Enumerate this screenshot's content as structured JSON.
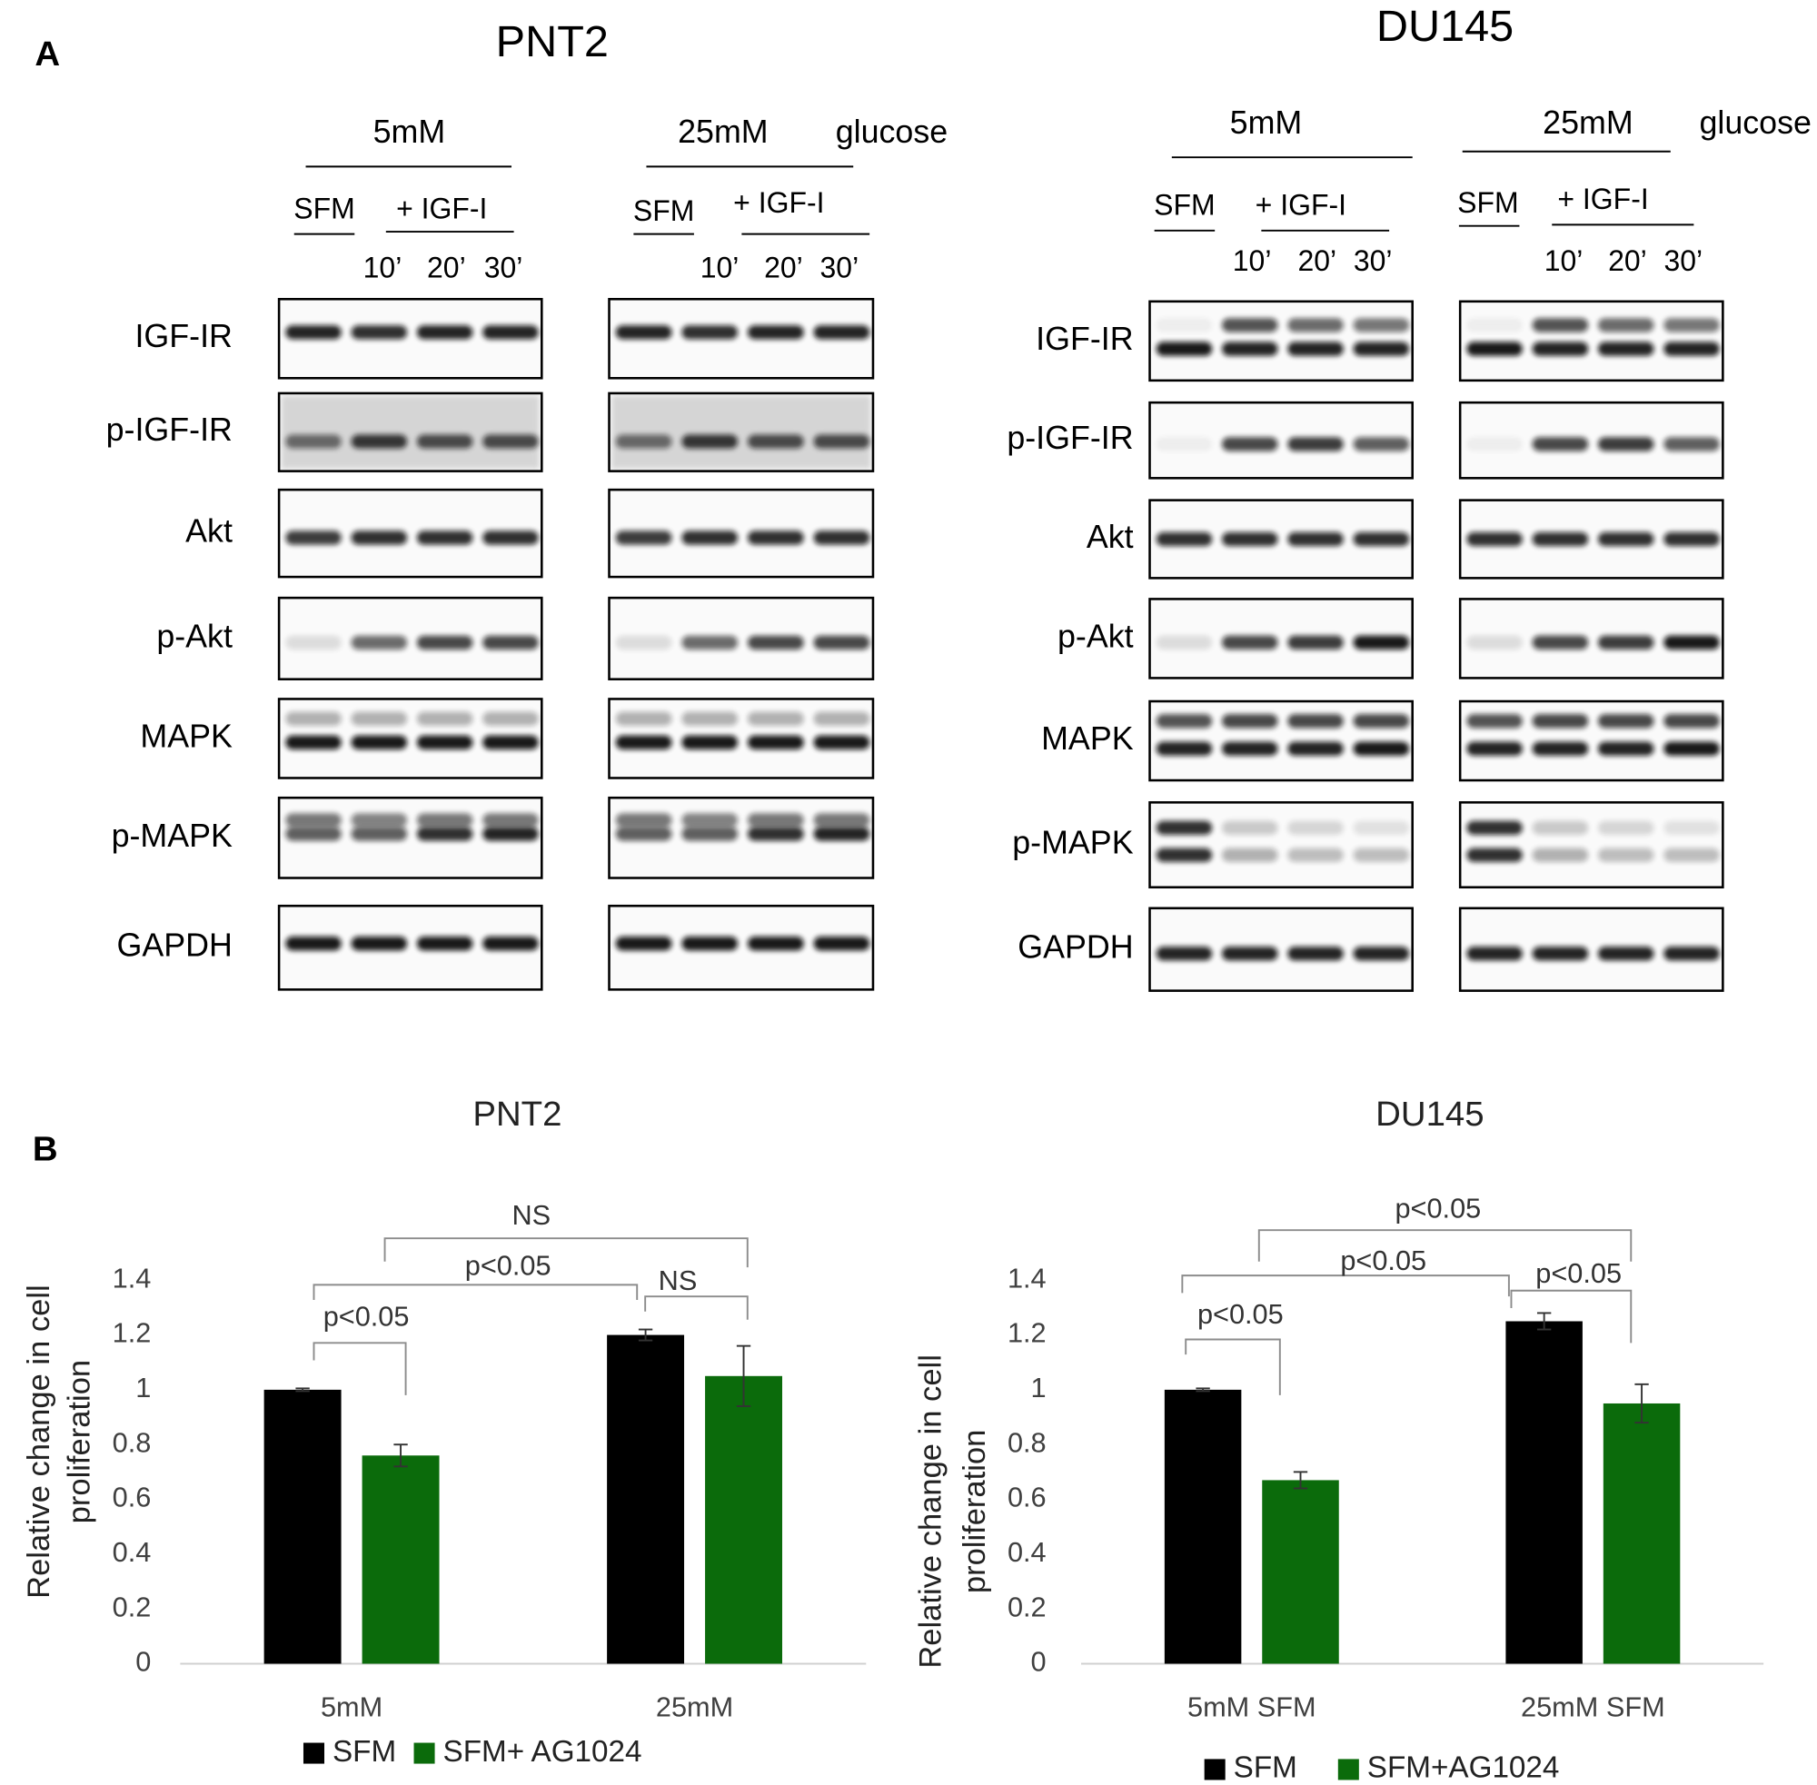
{
  "panel_a": {
    "label": "A",
    "blots": [
      {
        "title": "PNT2",
        "glucose": "glucose",
        "groups": [
          {
            "concentration": "5mM",
            "control": "SFM",
            "treatment": "+ IGF-I",
            "times": [
              "10’",
              "20’",
              "30’"
            ]
          },
          {
            "concentration": "25mM",
            "control": "SFM",
            "treatment": "+ IGF-I",
            "times": [
              "10’",
              "20’",
              "30’"
            ]
          }
        ],
        "proteins": [
          "IGF-IR",
          "p-IGF-IR",
          "Akt",
          "p-Akt",
          "MAPK",
          "p-MAPK",
          "GAPDH"
        ]
      },
      {
        "title": "DU145",
        "glucose": "glucose",
        "groups": [
          {
            "concentration": "5mM",
            "control": "SFM",
            "treatment": "+ IGF-I",
            "times": [
              "10’",
              "20’",
              "30’"
            ]
          },
          {
            "concentration": "25mM",
            "control": "SFM",
            "treatment": "+ IGF-I",
            "times": [
              "10’",
              "20’",
              "30’"
            ]
          }
        ],
        "proteins": [
          "IGF-IR",
          "p-IGF-IR",
          "Akt",
          "p-Akt",
          "MAPK",
          "p-MAPK",
          "GAPDH"
        ]
      }
    ]
  },
  "panel_b": {
    "label": "B"
  },
  "chart_data": [
    {
      "type": "bar",
      "title": "PNT2",
      "ylabel": [
        "Relative change in cell",
        "proliferation"
      ],
      "categories": [
        "5mM",
        "25mM"
      ],
      "series": [
        {
          "name": "SFM",
          "color": "#000000",
          "values": [
            1,
            1.2
          ],
          "errors": [
            0.005,
            0.02
          ]
        },
        {
          "name": "SFM+ AG1024",
          "color": "#0b6b0b",
          "values": [
            0.76,
            1.05
          ],
          "errors": [
            0.04,
            0.11
          ]
        }
      ],
      "ylim": [
        0,
        1.4
      ],
      "yticks": [
        0,
        0.2,
        0.4,
        0.6,
        0.8,
        1,
        1.2,
        1.4
      ],
      "grid": false,
      "legend": "bottom",
      "annotations": [
        "p<0.05",
        "p<0.05",
        "NS",
        "NS"
      ]
    },
    {
      "type": "bar",
      "title": "DU145",
      "ylabel": [
        "Relative change in cell",
        "proliferation"
      ],
      "categories": [
        "5mM SFM",
        "25mM SFM"
      ],
      "series": [
        {
          "name": "SFM",
          "color": "#000000",
          "values": [
            1,
            1.25
          ],
          "errors": [
            0.005,
            0.03
          ]
        },
        {
          "name": "SFM+AG1024",
          "color": "#0b6b0b",
          "values": [
            0.67,
            0.95
          ],
          "errors": [
            0.03,
            0.07
          ]
        }
      ],
      "ylim": [
        0,
        1.4
      ],
      "yticks": [
        0,
        0.2,
        0.4,
        0.6,
        0.8,
        1,
        1.2,
        1.4
      ],
      "grid": false,
      "legend": "bottom",
      "annotations": [
        "p<0.05",
        "p<0.05",
        "p<0.05",
        "p<0.05"
      ]
    }
  ]
}
